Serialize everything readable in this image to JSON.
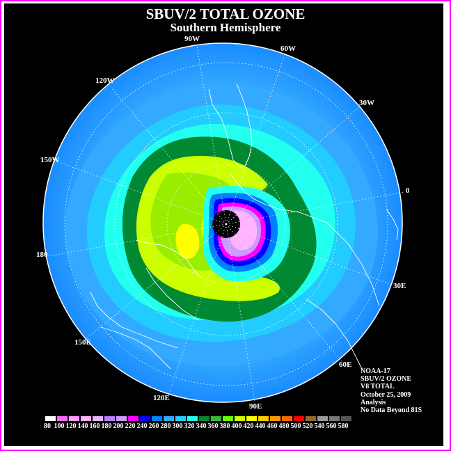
{
  "title": "SBUV/2 TOTAL OZONE",
  "subtitle": "Southern Hemisphere",
  "lon_labels": [
    "90W",
    "60W",
    "120W",
    "30W",
    "150W",
    "0",
    "180",
    "30E",
    "150E",
    "60E",
    "120E",
    "90E"
  ],
  "info": {
    "line1": "NOAA-17",
    "line2": "SBUV/2 OZONE",
    "line3": "V8 TOTAL",
    "line4": "October 25, 2009",
    "line5": "Analysis",
    "line6": "No Data Beyond 81S"
  },
  "colorbar": {
    "labels": [
      "80",
      "100",
      "120",
      "140",
      "160",
      "180",
      "200",
      "220",
      "240",
      "260",
      "280",
      "300",
      "320",
      "340",
      "360",
      "380",
      "400",
      "420",
      "440",
      "460",
      "480",
      "500",
      "520",
      "540",
      "560",
      "580"
    ],
    "colors": [
      "#ffffff",
      "#ff66ff",
      "#ff99ff",
      "#ffb3ff",
      "#e6b3ff",
      "#b380ff",
      "#cc99ff",
      "#ff00ff",
      "#0000ff",
      "#0080ff",
      "#33aaff",
      "#22ccff",
      "#22ffee",
      "#008833",
      "#33bb33",
      "#66ff00",
      "#ccff00",
      "#ffff00",
      "#ffcc00",
      "#ff9900",
      "#ff6600",
      "#ff0000",
      "#996633",
      "#999999",
      "#777777",
      "#555555"
    ]
  },
  "colors": {
    "background": "#000000",
    "frame": "#ff00ff",
    "no_data": "#000000"
  }
}
